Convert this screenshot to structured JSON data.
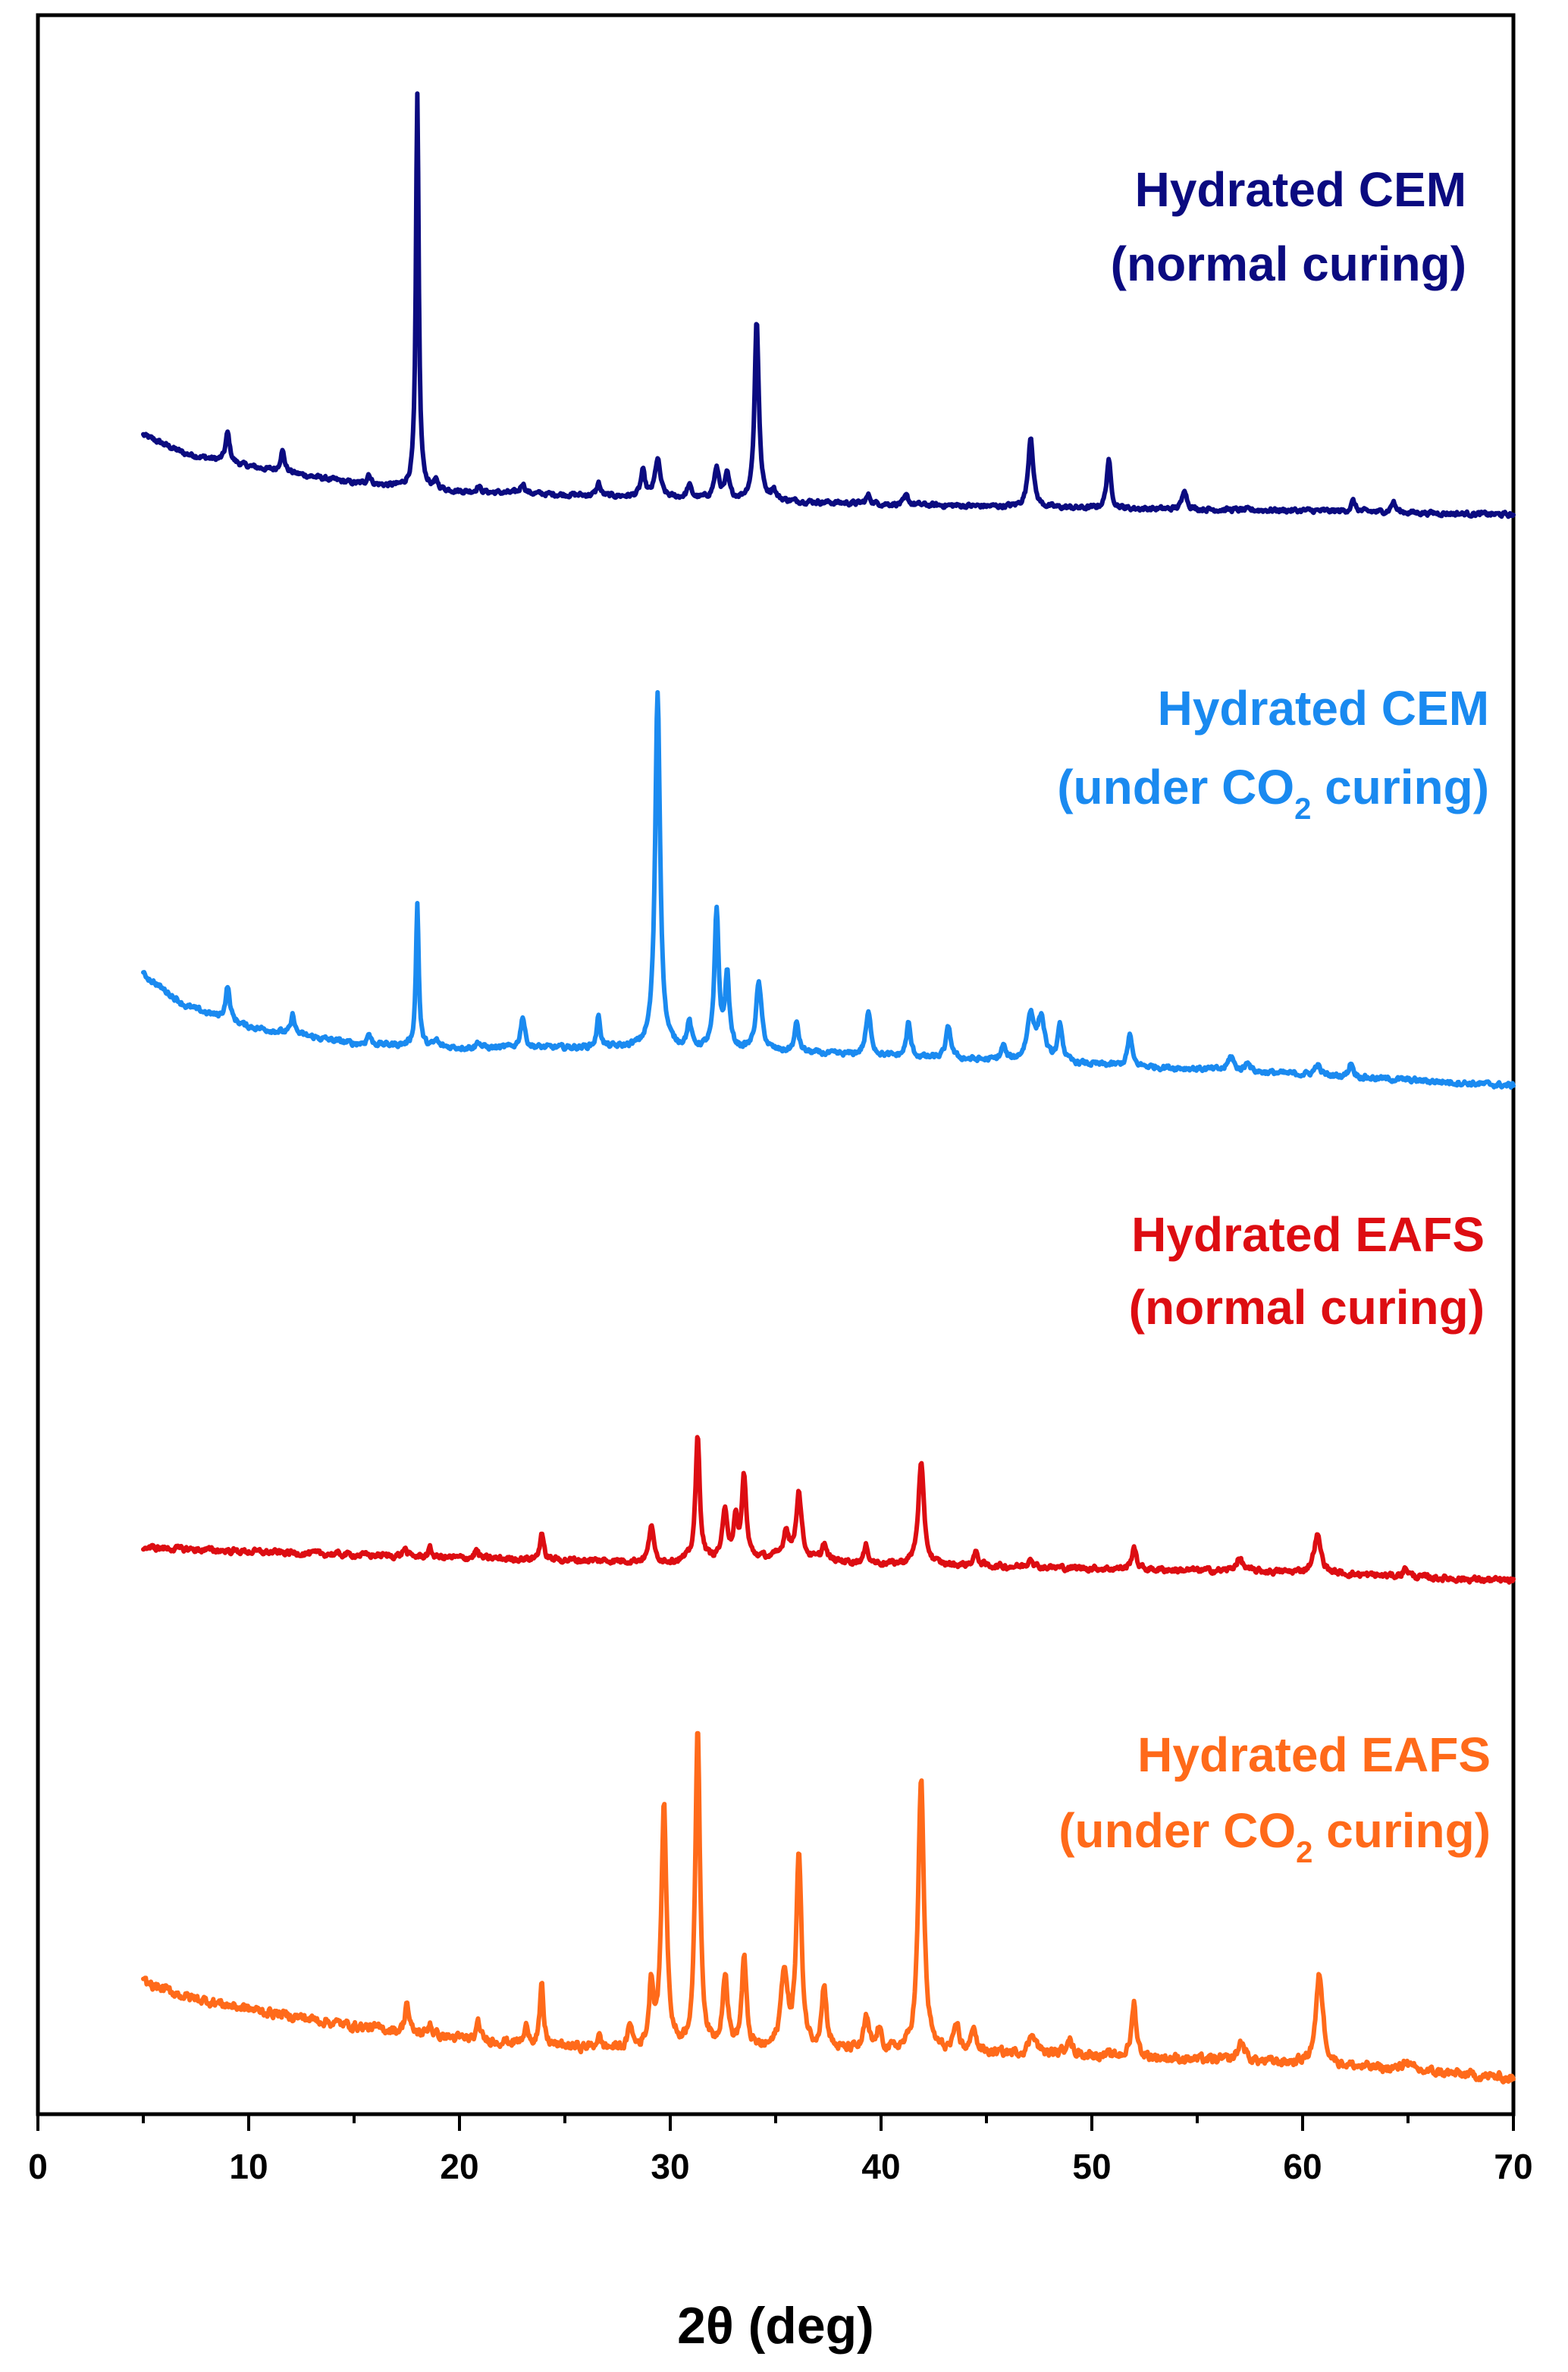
{
  "chart_data": {
    "type": "line",
    "title": "",
    "xlabel": "2θ (deg)",
    "ylabel": "",
    "xlim": [
      0,
      70
    ],
    "ylim": [
      0,
      100
    ],
    "x_ticks": [
      0,
      10,
      20,
      30,
      40,
      50,
      60,
      70
    ],
    "x_tick_labels": [
      "0",
      "10",
      "20",
      "30",
      "40",
      "50",
      "60",
      "70"
    ],
    "y_ticks_visible": false,
    "grid": false,
    "legend_placement": "inline-right-above-each-trace",
    "series": [
      {
        "name": "Hydrated CEM (normal curing)",
        "label_line1": "Hydrated CEM",
        "label_line2": "(normal curing)",
        "label_line2_sub": "",
        "label_line2_tail": "",
        "color": "#0b0b80",
        "x_range": [
          5,
          70
        ],
        "baseline": [
          [
            5,
            80.0
          ],
          [
            7,
            79.1
          ],
          [
            10,
            78.5
          ],
          [
            15,
            77.7
          ],
          [
            20,
            77.3
          ],
          [
            30,
            77.0
          ],
          [
            40,
            76.7
          ],
          [
            50,
            76.5
          ],
          [
            60,
            76.4
          ],
          [
            70,
            76.2
          ]
        ],
        "noise": 0.18,
        "peaks": [
          [
            9.0,
            1.4,
            0.12
          ],
          [
            11.6,
            1.0,
            0.12
          ],
          [
            15.7,
            0.5,
            0.1
          ],
          [
            18.0,
            18.7,
            0.08
          ],
          [
            18.9,
            0.35,
            0.1
          ],
          [
            20.9,
            0.3,
            0.1
          ],
          [
            23.0,
            0.5,
            0.12
          ],
          [
            26.6,
            0.6,
            0.1
          ],
          [
            28.7,
            1.2,
            0.12
          ],
          [
            29.4,
            1.8,
            0.15
          ],
          [
            30.9,
            0.6,
            0.12
          ],
          [
            32.2,
            1.4,
            0.15
          ],
          [
            32.7,
            1.1,
            0.12
          ],
          [
            34.1,
            8.6,
            0.12
          ],
          [
            34.9,
            0.5,
            0.12
          ],
          [
            39.4,
            0.4,
            0.12
          ],
          [
            41.2,
            0.4,
            0.12
          ],
          [
            47.1,
            3.4,
            0.14
          ],
          [
            50.8,
            2.3,
            0.12
          ],
          [
            54.4,
            1.0,
            0.12
          ],
          [
            62.4,
            0.5,
            0.12
          ],
          [
            64.3,
            0.5,
            0.12
          ]
        ]
      },
      {
        "name": "Hydrated CEM (under CO2 curing)",
        "label_line1": "Hydrated CEM",
        "label_line2": "(under CO",
        "label_line2_sub": "2",
        "label_line2_tail": " curing)",
        "color": "#1a8af0",
        "x_range": [
          5,
          70
        ],
        "baseline": [
          [
            5,
            54.3
          ],
          [
            7,
            52.8
          ],
          [
            10,
            51.8
          ],
          [
            15,
            51.0
          ],
          [
            20,
            50.8
          ],
          [
            28,
            50.8
          ],
          [
            35,
            50.6
          ],
          [
            45,
            50.2
          ],
          [
            55,
            49.8
          ],
          [
            70,
            49.0
          ]
        ],
        "noise": 0.2,
        "peaks": [
          [
            9.0,
            1.6,
            0.12
          ],
          [
            12.1,
            0.9,
            0.1
          ],
          [
            15.7,
            0.5,
            0.1
          ],
          [
            18.0,
            6.8,
            0.08
          ],
          [
            18.9,
            0.3,
            0.1
          ],
          [
            20.9,
            0.3,
            0.1
          ],
          [
            23.0,
            1.5,
            0.12
          ],
          [
            26.6,
            1.5,
            0.1
          ],
          [
            29.4,
            17.0,
            0.14
          ],
          [
            30.9,
            1.2,
            0.12
          ],
          [
            32.2,
            6.5,
            0.12
          ],
          [
            32.7,
            3.5,
            0.12
          ],
          [
            34.2,
            3.2,
            0.16
          ],
          [
            36.0,
            1.4,
            0.12
          ],
          [
            39.4,
            2.0,
            0.15
          ],
          [
            41.3,
            1.6,
            0.12
          ],
          [
            43.2,
            1.5,
            0.14
          ],
          [
            45.8,
            0.7,
            0.12
          ],
          [
            47.1,
            2.2,
            0.2
          ],
          [
            47.6,
            2.0,
            0.2
          ],
          [
            48.5,
            1.7,
            0.14
          ],
          [
            51.8,
            1.5,
            0.12
          ],
          [
            56.6,
            0.7,
            0.15
          ],
          [
            57.4,
            0.5,
            0.12
          ],
          [
            60.7,
            0.5,
            0.15
          ],
          [
            62.3,
            0.7,
            0.12
          ]
        ]
      },
      {
        "name": "Hydrated EAFS (normal curing)",
        "label_line1": "Hydrated EAFS",
        "label_line2": "(normal curing)",
        "label_line2_sub": "",
        "label_line2_tail": "",
        "color": "#dd0d12",
        "x_range": [
          5,
          70
        ],
        "baseline": [
          [
            5,
            27.0
          ],
          [
            10,
            26.8
          ],
          [
            20,
            26.5
          ],
          [
            30,
            26.3
          ],
          [
            35,
            26.5
          ],
          [
            40,
            26.2
          ],
          [
            50,
            26.0
          ],
          [
            60,
            25.8
          ],
          [
            70,
            25.4
          ]
        ],
        "noise": 0.22,
        "peaks": [
          [
            17.4,
            0.4,
            0.1
          ],
          [
            18.6,
            0.4,
            0.1
          ],
          [
            20.8,
            0.4,
            0.1
          ],
          [
            23.9,
            1.3,
            0.1
          ],
          [
            29.1,
            1.8,
            0.12
          ],
          [
            31.3,
            5.9,
            0.12
          ],
          [
            32.6,
            2.2,
            0.15
          ],
          [
            33.1,
            1.7,
            0.12
          ],
          [
            33.5,
            3.9,
            0.12
          ],
          [
            35.5,
            1.3,
            0.15
          ],
          [
            36.1,
            3.2,
            0.15
          ],
          [
            37.3,
            0.8,
            0.12
          ],
          [
            39.3,
            0.8,
            0.12
          ],
          [
            41.9,
            4.8,
            0.16
          ],
          [
            44.5,
            0.6,
            0.15
          ],
          [
            47.1,
            0.5,
            0.12
          ],
          [
            52.0,
            1.1,
            0.12
          ],
          [
            57.0,
            0.6,
            0.2
          ],
          [
            60.7,
            1.8,
            0.2
          ],
          [
            64.9,
            0.4,
            0.15
          ]
        ]
      },
      {
        "name": "Hydrated EAFS (under CO2 curing)",
        "label_line1": "Hydrated EAFS",
        "label_line2": "(under CO",
        "label_line2_sub": "2",
        "label_line2_tail": " curing)",
        "color": "#ff6a1a",
        "x_range": [
          5,
          70
        ],
        "baseline": [
          [
            5,
            6.3
          ],
          [
            7,
            5.6
          ],
          [
            10,
            5.0
          ],
          [
            15,
            4.2
          ],
          [
            20,
            3.6
          ],
          [
            25,
            3.2
          ],
          [
            30,
            3.0
          ],
          [
            35,
            3.0
          ],
          [
            40,
            3.0
          ],
          [
            45,
            2.9
          ],
          [
            50,
            2.8
          ],
          [
            55,
            2.6
          ],
          [
            60,
            2.4
          ],
          [
            65,
            2.1
          ],
          [
            70,
            1.7
          ]
        ],
        "noise": 0.35,
        "peaks": [
          [
            17.5,
            1.5,
            0.1
          ],
          [
            18.6,
            0.6,
            0.1
          ],
          [
            20.9,
            0.8,
            0.1
          ],
          [
            23.2,
            0.8,
            0.12
          ],
          [
            23.9,
            2.8,
            0.1
          ],
          [
            26.6,
            0.6,
            0.1
          ],
          [
            28.1,
            1.2,
            0.1
          ],
          [
            29.1,
            3.0,
            0.12
          ],
          [
            29.7,
            11.5,
            0.15
          ],
          [
            31.3,
            15.4,
            0.13
          ],
          [
            32.6,
            3.5,
            0.15
          ],
          [
            33.5,
            4.3,
            0.13
          ],
          [
            35.4,
            3.7,
            0.18
          ],
          [
            36.1,
            9.2,
            0.15
          ],
          [
            37.3,
            3.0,
            0.14
          ],
          [
            39.3,
            1.5,
            0.14
          ],
          [
            39.9,
            1.0,
            0.12
          ],
          [
            41.9,
            13.0,
            0.16
          ],
          [
            43.6,
            1.2,
            0.14
          ],
          [
            44.4,
            1.3,
            0.12
          ],
          [
            47.2,
            1.0,
            0.2
          ],
          [
            48.9,
            0.9,
            0.14
          ],
          [
            52.0,
            2.6,
            0.13
          ],
          [
            57.1,
            0.9,
            0.2
          ],
          [
            60.8,
            4.3,
            0.2
          ],
          [
            64.9,
            0.5,
            0.15
          ]
        ]
      }
    ]
  }
}
